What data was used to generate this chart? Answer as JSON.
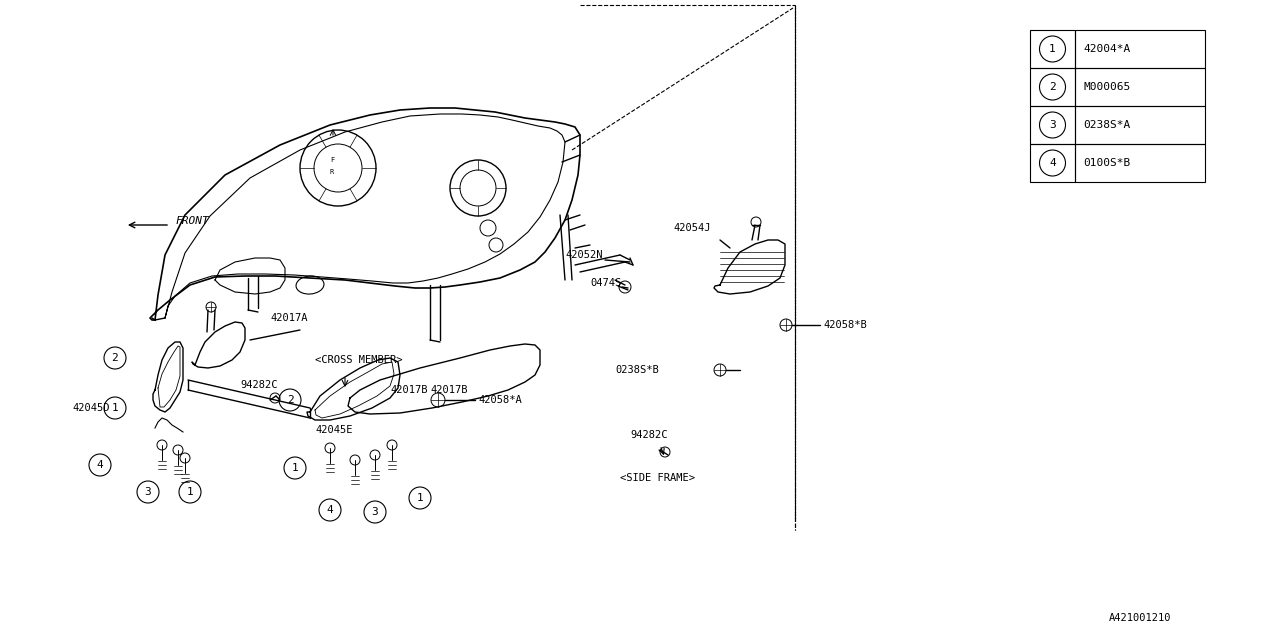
{
  "bg_color": "#ffffff",
  "line_color": "#000000",
  "legend_items": [
    {
      "num": "1",
      "code": "42004*A"
    },
    {
      "num": "2",
      "code": "M000065"
    },
    {
      "num": "3",
      "code": "0238S*A"
    },
    {
      "num": "4",
      "code": "0100S*B"
    }
  ],
  "diagram_code": "A421001210",
  "lw": 1.0,
  "figw": 12.8,
  "figh": 6.4,
  "dpi": 100
}
